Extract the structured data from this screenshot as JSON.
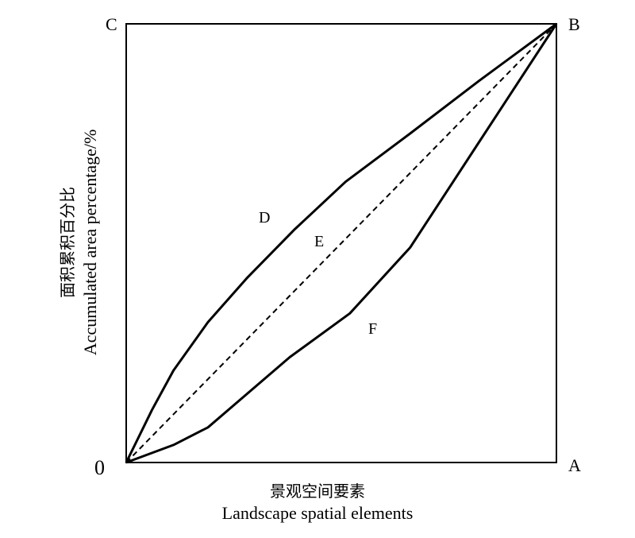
{
  "corners": {
    "origin": "0",
    "a": "A",
    "b": "B",
    "c": "C"
  },
  "regions": {
    "d": "D",
    "e": "E",
    "f": "F"
  },
  "x_axis": {
    "label_cn": "景观空间要素",
    "label_en": "Landscape spatial elements"
  },
  "y_axis": {
    "label_cn": "面积累积百分比",
    "label_en": "Accumulated area percentage/%"
  },
  "curves": {
    "upper_D": [
      [
        0,
        0
      ],
      [
        0.06,
        0.12
      ],
      [
        0.11,
        0.21
      ],
      [
        0.19,
        0.32
      ],
      [
        0.28,
        0.42
      ],
      [
        0.39,
        0.53
      ],
      [
        0.51,
        0.64
      ],
      [
        0.66,
        0.75
      ],
      [
        0.82,
        0.87
      ],
      [
        1,
        1
      ]
    ],
    "diagonal_E": [
      [
        0,
        0
      ],
      [
        1,
        1
      ]
    ],
    "lower_F": [
      [
        0,
        0
      ],
      [
        0.11,
        0.04
      ],
      [
        0.19,
        0.08
      ],
      [
        0.38,
        0.24
      ],
      [
        0.52,
        0.34
      ],
      [
        0.66,
        0.49
      ],
      [
        0.82,
        0.73
      ],
      [
        1,
        1
      ]
    ]
  }
}
